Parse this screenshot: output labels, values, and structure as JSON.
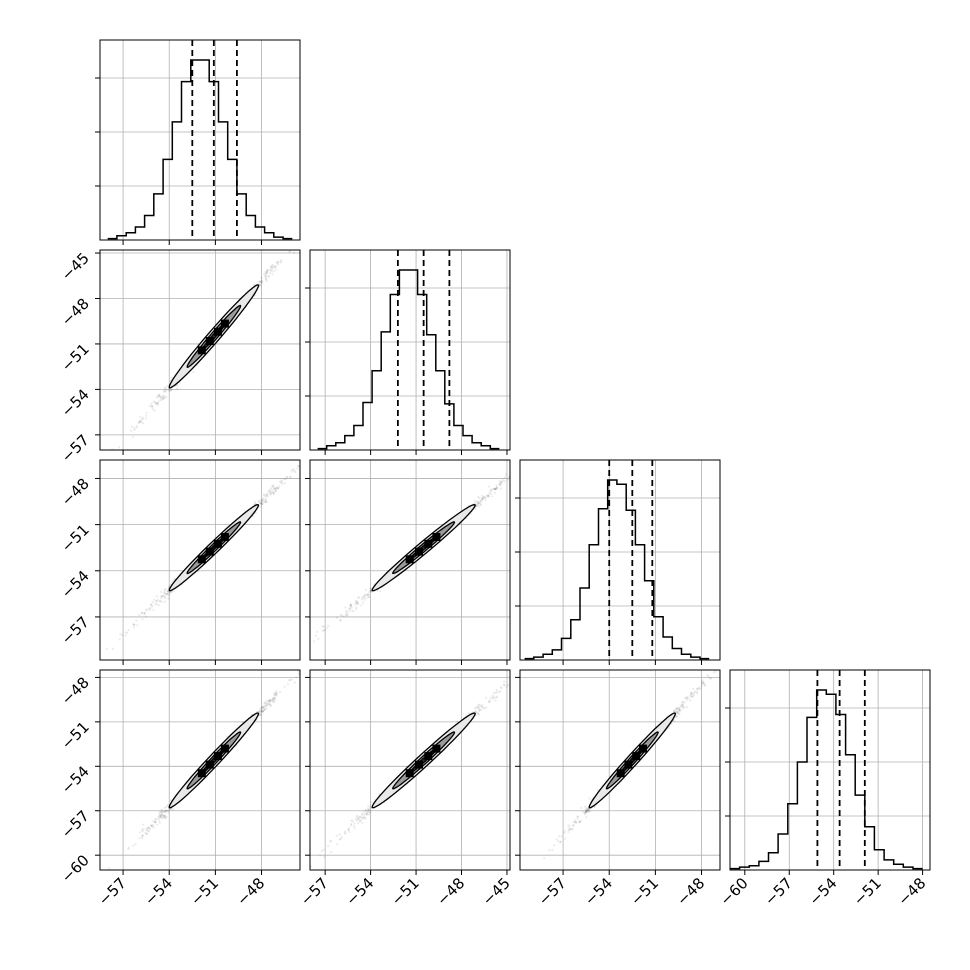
{
  "chart_data": {
    "type": "corner",
    "title": "",
    "grid": true,
    "colors": {
      "ink": "#000000",
      "grid": "#b0b0b0"
    },
    "quantiles": [
      [
        -52.5,
        -51.1,
        -49.6
      ],
      [
        -52.2,
        -50.5,
        -48.8
      ],
      [
        -54.0,
        -52.5,
        -51.2
      ],
      [
        -55.1,
        -53.6,
        -51.9
      ]
    ],
    "histograms": [
      {
        "start": -58.0,
        "width": 0.6,
        "counts": [
          1,
          3,
          5,
          9,
          17,
          32,
          56,
          82,
          110,
          125,
          125,
          110,
          82,
          56,
          32,
          17,
          9,
          5,
          2,
          1
        ]
      },
      {
        "start": -57.5,
        "width": 0.6,
        "counts": [
          1,
          3,
          5,
          10,
          17,
          33,
          55,
          82,
          108,
          125,
          125,
          108,
          80,
          55,
          32,
          17,
          10,
          5,
          3,
          1
        ]
      },
      {
        "start": -59.5,
        "width": 0.6,
        "counts": [
          1,
          2,
          4,
          7,
          15,
          28,
          50,
          80,
          105,
          125,
          122,
          104,
          80,
          55,
          30,
          16,
          8,
          4,
          2,
          1
        ]
      },
      {
        "start": -61.0,
        "width": 0.65,
        "counts": [
          1,
          2,
          3,
          6,
          12,
          25,
          46,
          75,
          106,
          125,
          122,
          108,
          80,
          52,
          30,
          14,
          7,
          4,
          2,
          1
        ]
      }
    ],
    "axis_ranges": [
      [
        -58.5,
        -45.5
      ],
      [
        -58.0,
        -44.8
      ],
      [
        -59.8,
        -46.8
      ],
      [
        -61.0,
        -47.5
      ]
    ],
    "x_ticks": [
      [
        "−57",
        "−54",
        "−51",
        "−48"
      ],
      [
        "−57",
        "−54",
        "−51",
        "−48",
        "−45"
      ],
      [
        "−57",
        "−54",
        "−51",
        "−48"
      ],
      [
        "−60",
        "−57",
        "−54",
        "−51",
        "−48"
      ]
    ],
    "x_tick_values": [
      [
        -57,
        -54,
        -51,
        -48
      ],
      [
        -57,
        -54,
        -51,
        -48,
        -45
      ],
      [
        -57,
        -54,
        -51,
        -48
      ],
      [
        -60,
        -57,
        -54,
        -51,
        -48
      ]
    ],
    "y_ticks": [
      [
        "−45",
        "−48",
        "−51",
        "−54",
        "−57"
      ],
      [
        "−48",
        "−51",
        "−54",
        "−57"
      ],
      [
        "−48",
        "−51",
        "−54",
        "−57",
        "−60"
      ]
    ],
    "y_tick_values": [
      [
        -45,
        -48,
        -51,
        -54,
        -57
      ],
      [
        -48,
        -51,
        -54,
        -57
      ],
      [
        -48,
        -51,
        -54,
        -57,
        -60
      ]
    ]
  }
}
